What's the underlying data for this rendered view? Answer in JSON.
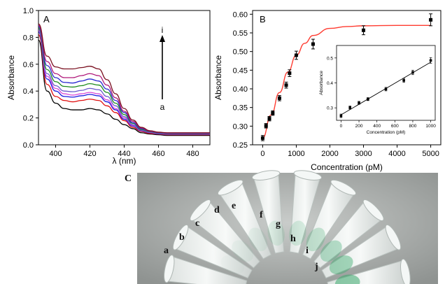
{
  "chart_data": [
    {
      "panel": "A",
      "type": "line",
      "xlabel": "λ (nm)",
      "ylabel": "Absorbance",
      "xlim": [
        390,
        490
      ],
      "ylim": [
        0.0,
        1.0
      ],
      "xticks": [
        400,
        420,
        440,
        460,
        480
      ],
      "yticks": [
        0.0,
        0.2,
        0.4,
        0.6,
        0.8,
        1.0
      ],
      "arrow_start_label": "a",
      "arrow_end_label": "i",
      "x": [
        390,
        395,
        400,
        405,
        410,
        415,
        420,
        425,
        430,
        435,
        440,
        445,
        450,
        455,
        460,
        465,
        470,
        480,
        490
      ],
      "series": [
        {
          "color": "#000000",
          "values": [
            0.78,
            0.4,
            0.31,
            0.27,
            0.26,
            0.26,
            0.27,
            0.26,
            0.23,
            0.19,
            0.15,
            0.12,
            0.09,
            0.08,
            0.075,
            0.07,
            0.07,
            0.07,
            0.07
          ]
        },
        {
          "color": "#e01010",
          "values": [
            0.82,
            0.45,
            0.36,
            0.33,
            0.32,
            0.33,
            0.34,
            0.33,
            0.29,
            0.24,
            0.18,
            0.13,
            0.1,
            0.085,
            0.08,
            0.075,
            0.075,
            0.075,
            0.075
          ]
        },
        {
          "color": "#1a1ae0",
          "values": [
            0.84,
            0.49,
            0.4,
            0.36,
            0.355,
            0.365,
            0.375,
            0.365,
            0.32,
            0.26,
            0.19,
            0.14,
            0.105,
            0.09,
            0.082,
            0.078,
            0.078,
            0.078,
            0.078
          ]
        },
        {
          "color": "#d84ad8",
          "values": [
            0.85,
            0.51,
            0.42,
            0.38,
            0.37,
            0.38,
            0.39,
            0.38,
            0.335,
            0.27,
            0.2,
            0.145,
            0.108,
            0.092,
            0.084,
            0.08,
            0.08,
            0.08,
            0.08
          ]
        },
        {
          "color": "#6a5acd",
          "values": [
            0.86,
            0.53,
            0.44,
            0.4,
            0.395,
            0.405,
            0.42,
            0.41,
            0.36,
            0.29,
            0.21,
            0.15,
            0.11,
            0.094,
            0.086,
            0.082,
            0.082,
            0.082,
            0.082
          ]
        },
        {
          "color": "#1e8a1e",
          "values": [
            0.87,
            0.56,
            0.47,
            0.435,
            0.43,
            0.44,
            0.455,
            0.445,
            0.39,
            0.31,
            0.225,
            0.16,
            0.115,
            0.097,
            0.088,
            0.084,
            0.084,
            0.084,
            0.084
          ]
        },
        {
          "color": "#2a2ad0",
          "values": [
            0.88,
            0.59,
            0.5,
            0.465,
            0.46,
            0.475,
            0.49,
            0.475,
            0.415,
            0.33,
            0.24,
            0.165,
            0.12,
            0.1,
            0.09,
            0.086,
            0.086,
            0.086,
            0.086
          ]
        },
        {
          "color": "#b0197a",
          "values": [
            0.89,
            0.62,
            0.53,
            0.5,
            0.5,
            0.515,
            0.53,
            0.515,
            0.445,
            0.35,
            0.25,
            0.175,
            0.125,
            0.102,
            0.092,
            0.088,
            0.088,
            0.088,
            0.088
          ]
        },
        {
          "color": "#7a1020",
          "values": [
            0.9,
            0.66,
            0.58,
            0.565,
            0.565,
            0.575,
            0.585,
            0.565,
            0.485,
            0.38,
            0.27,
            0.185,
            0.13,
            0.105,
            0.094,
            0.09,
            0.09,
            0.09,
            0.09
          ]
        }
      ]
    },
    {
      "panel": "B",
      "type": "scatter",
      "xlabel": "Concentration (pM)",
      "ylabel": "Absorbance",
      "xlim": [
        -300,
        5300
      ],
      "ylim": [
        0.25,
        0.61
      ],
      "xticks": [
        0,
        1000,
        2000,
        3000,
        4000,
        5000
      ],
      "yticks": [
        0.25,
        0.3,
        0.35,
        0.4,
        0.45,
        0.5,
        0.55,
        0.6
      ],
      "points": [
        {
          "x": 0,
          "y": 0.268,
          "err": 0.007
        },
        {
          "x": 100,
          "y": 0.301,
          "err": 0.006
        },
        {
          "x": 200,
          "y": 0.32,
          "err": 0.006
        },
        {
          "x": 300,
          "y": 0.335,
          "err": 0.006
        },
        {
          "x": 500,
          "y": 0.375,
          "err": 0.007
        },
        {
          "x": 700,
          "y": 0.41,
          "err": 0.008
        },
        {
          "x": 800,
          "y": 0.442,
          "err": 0.009
        },
        {
          "x": 1000,
          "y": 0.49,
          "err": 0.011
        },
        {
          "x": 1500,
          "y": 0.52,
          "err": 0.013
        },
        {
          "x": 3000,
          "y": 0.557,
          "err": 0.012
        },
        {
          "x": 5000,
          "y": 0.585,
          "err": 0.016
        }
      ],
      "fit_color": "#ff3b30",
      "fit_curve": {
        "x": [
          0,
          250,
          500,
          750,
          1000,
          1250,
          1500,
          2000,
          2500,
          3000,
          4000,
          5000
        ],
        "y": [
          0.268,
          0.33,
          0.39,
          0.445,
          0.49,
          0.522,
          0.543,
          0.562,
          0.567,
          0.569,
          0.57,
          0.57
        ]
      }
    },
    {
      "panel": "B-inset",
      "type": "scatter",
      "xlabel": "Concentration (pM)",
      "ylabel": "Absorbance",
      "xlim": [
        -50,
        1050
      ],
      "ylim": [
        0.25,
        0.55
      ],
      "xticks": [
        0,
        200,
        400,
        600,
        800,
        1000
      ],
      "yticks": [
        0.3,
        0.4,
        0.5
      ],
      "points": [
        {
          "x": 0,
          "y": 0.268,
          "err": 0.007
        },
        {
          "x": 100,
          "y": 0.301,
          "err": 0.006
        },
        {
          "x": 200,
          "y": 0.32,
          "err": 0.006
        },
        {
          "x": 300,
          "y": 0.335,
          "err": 0.006
        },
        {
          "x": 500,
          "y": 0.375,
          "err": 0.007
        },
        {
          "x": 700,
          "y": 0.41,
          "err": 0.008
        },
        {
          "x": 800,
          "y": 0.442,
          "err": 0.009
        },
        {
          "x": 1000,
          "y": 0.49,
          "err": 0.011
        }
      ],
      "fit_line": {
        "x": [
          0,
          1000
        ],
        "y": [
          0.272,
          0.483
        ]
      }
    }
  ],
  "panels": {
    "a_label": "A",
    "b_label": "B",
    "c_label": "C"
  },
  "photo": {
    "tube_labels": [
      "a",
      "b",
      "c",
      "d",
      "e",
      "f",
      "g",
      "h",
      "i",
      "j"
    ]
  }
}
